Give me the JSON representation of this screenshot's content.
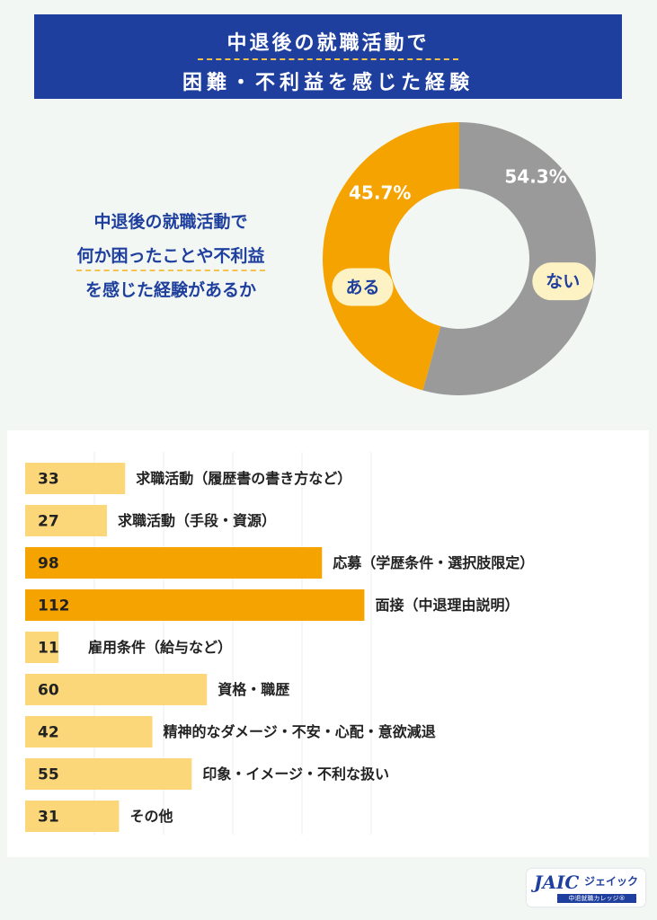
{
  "header": {
    "title_line1": "中退後の就職活動で",
    "title_line2": "困難・不利益を感じた経験"
  },
  "question": {
    "line1": "中退後の就職活動で",
    "line2": "何か困ったことや不利益",
    "line3": "を感じた経験があるか"
  },
  "colors": {
    "navy": "#1f3f9e",
    "orange": "#f5a300",
    "light_orange": "#fcd77a",
    "gray": "#9a9a9a",
    "label_bg": "#fdf2c4"
  },
  "logo": {
    "mark": "JAIC",
    "name": "ジェイック",
    "sub": "中退就職カレッジ®"
  },
  "chart_data": [
    {
      "type": "pie",
      "donut": true,
      "categories": [
        "ない",
        "ある"
      ],
      "values": [
        54.3,
        45.7
      ],
      "value_labels": [
        "54.3%",
        "45.7%"
      ],
      "colors": [
        "#9a9a9a",
        "#f5a300"
      ]
    },
    {
      "type": "bar",
      "orientation": "horizontal",
      "categories": [
        "求職活動（履歴書の書き方など）",
        "求職活動（手段・資源）",
        "応募（学歴条件・選択肢限定）",
        "面接（中退理由説明）",
        "雇用条件（給与など）",
        "資格・職歴",
        "精神的なダメージ・不安・心配・意欲減退",
        "印象・イメージ・不利な扱い",
        "その他"
      ],
      "values": [
        33,
        27,
        98,
        112,
        11,
        60,
        42,
        55,
        31
      ],
      "value_labels": [
        "33",
        "27",
        "98",
        "112",
        "11",
        "60",
        "42",
        "55",
        "31"
      ],
      "highlight": [
        false,
        false,
        true,
        true,
        false,
        false,
        false,
        false,
        false
      ],
      "colors": {
        "normal": "#fcd77a",
        "highlight": "#f5a300"
      }
    }
  ]
}
